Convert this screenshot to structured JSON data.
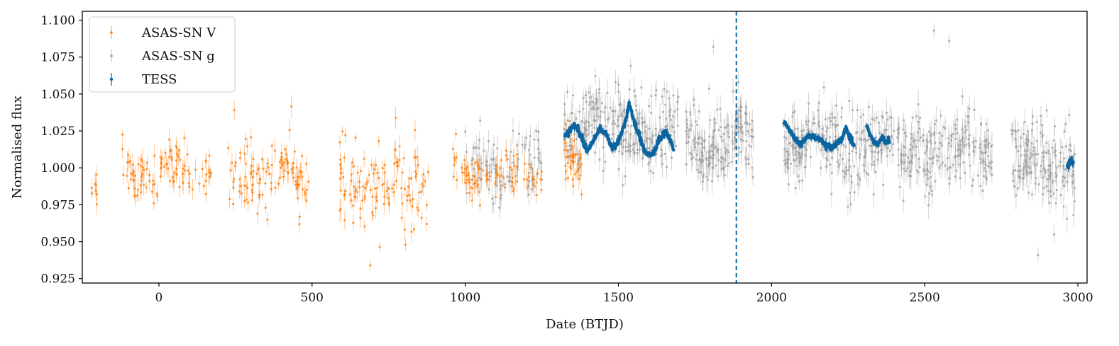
{
  "colors": {
    "asas_v": "#ff7f0e",
    "asas_g": "#a0a0a0",
    "tess": "#0a64a0",
    "event_line": "#0a64a0",
    "axis": "#000000"
  },
  "chart_data": {
    "type": "scatter",
    "title": "",
    "xlabel": "Date (BTJD)",
    "ylabel": "Normalised flux",
    "xlim": [
      -250,
      3030
    ],
    "ylim": [
      0.922,
      1.106
    ],
    "xticks": [
      0,
      500,
      1000,
      1500,
      2000,
      2500,
      3000
    ],
    "yticks": [
      0.925,
      0.95,
      0.975,
      1.0,
      1.025,
      1.05,
      1.075,
      1.1
    ],
    "xtick_labels": [
      "0",
      "500",
      "1000",
      "1500",
      "2000",
      "2500",
      "3000"
    ],
    "ytick_labels": [
      "0.925",
      "0.950",
      "0.975",
      "1.000",
      "1.025",
      "1.050",
      "1.075",
      "1.100"
    ],
    "grid": false,
    "legend_position": "top-left",
    "vertical_line": {
      "x": 1885,
      "style": "dashed"
    },
    "series": [
      {
        "name": "ASAS-SN V",
        "marker": "errorbar-point",
        "segments": [
          {
            "x_start": -220,
            "x_end": -200,
            "level": 0.988,
            "scatter": 0.007,
            "n": 8
          },
          {
            "x_start": -120,
            "x_end": 170,
            "level": 0.997,
            "scatter": 0.008,
            "n": 110
          },
          {
            "x_start": 225,
            "x_end": 490,
            "level": 0.993,
            "scatter": 0.011,
            "n": 120
          },
          {
            "x_start": 590,
            "x_end": 880,
            "level": 0.989,
            "scatter": 0.014,
            "n": 130
          },
          {
            "x_start": 960,
            "x_end": 1250,
            "level": 0.996,
            "scatter": 0.009,
            "n": 90
          },
          {
            "x_start": 1320,
            "x_end": 1380,
            "level": 1.003,
            "scatter": 0.008,
            "n": 40
          }
        ],
        "highlights": [
          {
            "x": 690,
            "y": 0.934
          },
          {
            "x": 805,
            "y": 0.948
          },
          {
            "x": 1380,
            "y": 0.982
          }
        ]
      },
      {
        "name": "ASAS-SN g",
        "marker": "errorbar-point",
        "segments": [
          {
            "x_start": 1000,
            "x_end": 1250,
            "level": 1.004,
            "scatter": 0.011,
            "n": 100
          },
          {
            "x_start": 1320,
            "x_end": 1700,
            "level": 1.027,
            "scatter": 0.012,
            "n": 260
          },
          {
            "x_start": 1720,
            "x_end": 1940,
            "level": 1.018,
            "scatter": 0.012,
            "n": 190
          },
          {
            "x_start": 2040,
            "x_end": 2400,
            "level": 1.015,
            "scatter": 0.012,
            "n": 260
          },
          {
            "x_start": 2410,
            "x_end": 2720,
            "level": 1.013,
            "scatter": 0.013,
            "n": 230
          },
          {
            "x_start": 2780,
            "x_end": 2990,
            "level": 1.003,
            "scatter": 0.015,
            "n": 170
          }
        ],
        "highlights": [
          {
            "x": 1540,
            "y": 1.069
          },
          {
            "x": 1810,
            "y": 1.082
          },
          {
            "x": 2530,
            "y": 1.093
          },
          {
            "x": 2580,
            "y": 1.086
          },
          {
            "x": 2870,
            "y": 0.941
          }
        ]
      },
      {
        "name": "TESS",
        "marker": "dense-line",
        "x": [
          1325,
          1338,
          1352,
          1368,
          1385,
          1400,
          1420,
          1440,
          1460,
          1480,
          1500,
          1520,
          1535,
          1545,
          1560,
          1585,
          1610,
          1635,
          1655,
          1670,
          1680
        ],
        "y": [
          1.022,
          1.025,
          1.028,
          1.026,
          1.018,
          1.012,
          1.019,
          1.027,
          1.023,
          1.013,
          1.018,
          1.029,
          1.043,
          1.036,
          1.026,
          1.012,
          1.008,
          1.02,
          1.025,
          1.018,
          1.012
        ],
        "segments_extra": [
          {
            "x": [
              2040,
              2055,
              2075,
              2095,
              2120,
              2140,
              2160,
              2180,
              2200,
              2215,
              2230,
              2240,
              2255,
              2270
            ],
            "y": [
              1.031,
              1.027,
              1.02,
              1.016,
              1.022,
              1.021,
              1.018,
              1.015,
              1.014,
              1.018,
              1.02,
              1.026,
              1.022,
              1.015
            ]
          },
          {
            "x": [
              2310,
              2325,
              2340,
              2360,
              2380,
              2385
            ],
            "y": [
              1.028,
              1.021,
              1.016,
              1.019,
              1.018,
              1.017
            ]
          },
          {
            "x": [
              2965,
              2972,
              2980,
              2985
            ],
            "y": [
              1.001,
              1.003,
              1.006,
              1.004
            ]
          }
        ]
      }
    ]
  }
}
